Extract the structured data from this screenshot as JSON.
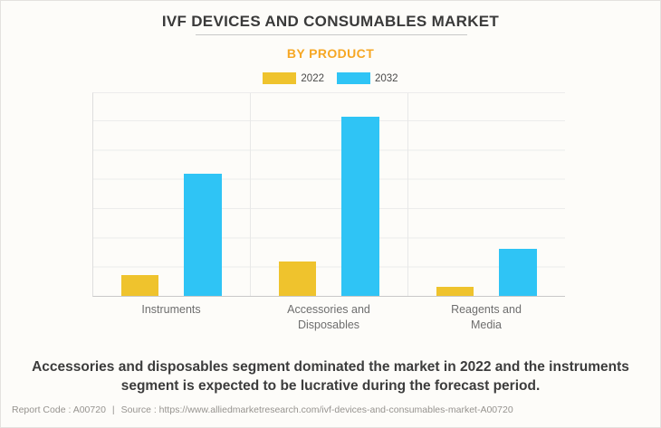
{
  "header": {
    "title": "IVF DEVICES AND CONSUMABLES MARKET",
    "subtitle": "BY PRODUCT"
  },
  "chart_data": {
    "type": "bar",
    "title": "IVF DEVICES AND CONSUMABLES MARKET",
    "subtitle": "BY PRODUCT",
    "categories": [
      "Instruments",
      "Accessories and Disposables",
      "Reagents and Media"
    ],
    "category_label_lines": [
      [
        "Instruments"
      ],
      [
        "Accessories and",
        "Disposables"
      ],
      [
        "Reagents and",
        "Media"
      ]
    ],
    "series": [
      {
        "name": "2022",
        "color": "#EFC32D",
        "values_pct_of_axis": [
          10.3,
          16.8,
          4.3
        ]
      },
      {
        "name": "2032",
        "color": "#2FC4F5",
        "values_pct_of_axis": [
          60.3,
          88.6,
          23.0
        ]
      }
    ],
    "xlabel": "",
    "ylabel": "",
    "y_axis": {
      "tick_labels_visible": false,
      "gridline_divisions": 7,
      "axis_range_pct": [
        0,
        100
      ]
    },
    "grid": true,
    "legend_position": "top"
  },
  "summary": "Accessories and disposables segment dominated the market in 2022 and the instruments segment is expected to be lucrative during the forecast period.",
  "footer": {
    "report_code": "Report Code : A00720",
    "separator": "|",
    "source": "Source : https://www.alliedmarketresearch.com/ivf-devices-and-consumables-market-A00720"
  },
  "colors": {
    "accent_orange": "#F6A724",
    "series_2022": "#EFC32D",
    "series_2032": "#2FC4F5",
    "background": "#FDFCF9"
  }
}
